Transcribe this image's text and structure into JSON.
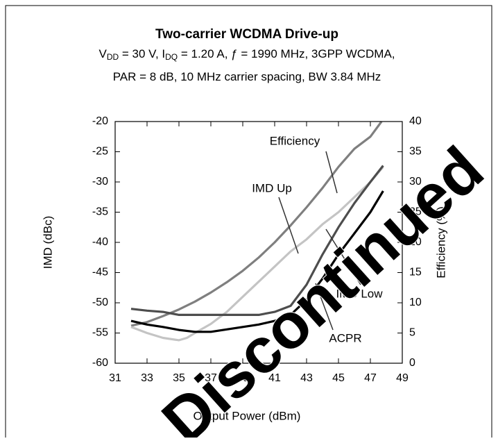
{
  "chart_data": {
    "type": "line",
    "title": "Two-carrier WCDMA  Drive-up",
    "subtitle_lines": [
      [
        "V",
        "DD",
        " = 30 V, I",
        "DQ",
        " = 1.20 A, ƒ = 1990 MHz, 3GPP WCDMA,"
      ],
      [
        "PAR = 8 dB, 10 MHz carrier spacing, BW 3.84 MHz"
      ]
    ],
    "x_label": "Output Power (dBm)",
    "y_label": "IMD (dBc)",
    "y2_label": "Efficiency (%)",
    "xlim": [
      31,
      49
    ],
    "xticks": [
      31,
      33,
      35,
      37,
      39,
      41,
      43,
      45,
      47,
      49
    ],
    "ylim": [
      -60,
      -20
    ],
    "yticks": [
      -60,
      -55,
      -50,
      -45,
      -40,
      -35,
      -30,
      -25,
      -20
    ],
    "y2lim": [
      0,
      40
    ],
    "y2ticks": [
      0,
      5,
      10,
      15,
      20,
      25,
      30,
      35,
      40
    ],
    "grid": false,
    "series": [
      {
        "name": "Efficiency",
        "color": "#7f7f7f",
        "axis": "y2",
        "x": [
          32,
          33,
          34,
          35,
          36,
          37,
          38,
          39,
          40,
          41,
          42,
          43,
          44,
          45,
          46,
          47,
          47.7
        ],
        "values": [
          6.2,
          6.8,
          7.8,
          8.9,
          10.2,
          11.7,
          13.4,
          15.3,
          17.5,
          20,
          22.8,
          25.8,
          29,
          32.5,
          35.5,
          37.5,
          40
        ]
      },
      {
        "name": "IMD Up",
        "color": "#c4c4c4",
        "x": [
          32,
          33,
          34,
          35,
          35.5,
          36,
          37,
          38,
          39,
          40,
          41,
          42,
          43,
          44,
          45,
          46,
          47,
          47.8
        ],
        "values": [
          -54,
          -55,
          -55.8,
          -56.2,
          -55.8,
          -55,
          -53.5,
          -51.5,
          -49,
          -46.5,
          -44,
          -41.5,
          -39.5,
          -37,
          -35,
          -32.5,
          -30,
          -27.5
        ]
      },
      {
        "name": "IMD Low",
        "color": "#4d4d4d",
        "x": [
          32,
          33,
          34,
          35,
          36,
          37,
          38,
          39,
          40,
          41,
          42,
          43,
          44,
          45,
          46,
          47,
          47.8
        ],
        "values": [
          -51,
          -51.3,
          -51.5,
          -52,
          -52,
          -52,
          -52,
          -52,
          -52,
          -51.5,
          -50.5,
          -47,
          -42,
          -37.5,
          -33.5,
          -30,
          -27.3
        ]
      },
      {
        "name": "ACPR",
        "color": "#000000",
        "x": [
          32,
          33,
          34,
          35,
          36,
          37,
          38,
          39,
          40,
          41,
          42,
          43,
          44,
          45,
          46,
          47,
          47.8
        ],
        "values": [
          -53,
          -53.6,
          -54,
          -54.5,
          -54.8,
          -54.8,
          -54.4,
          -54,
          -53.6,
          -53,
          -52,
          -49.5,
          -46,
          -42,
          -38.5,
          -35,
          -31.5
        ]
      }
    ],
    "watermark": "Discontinued"
  }
}
